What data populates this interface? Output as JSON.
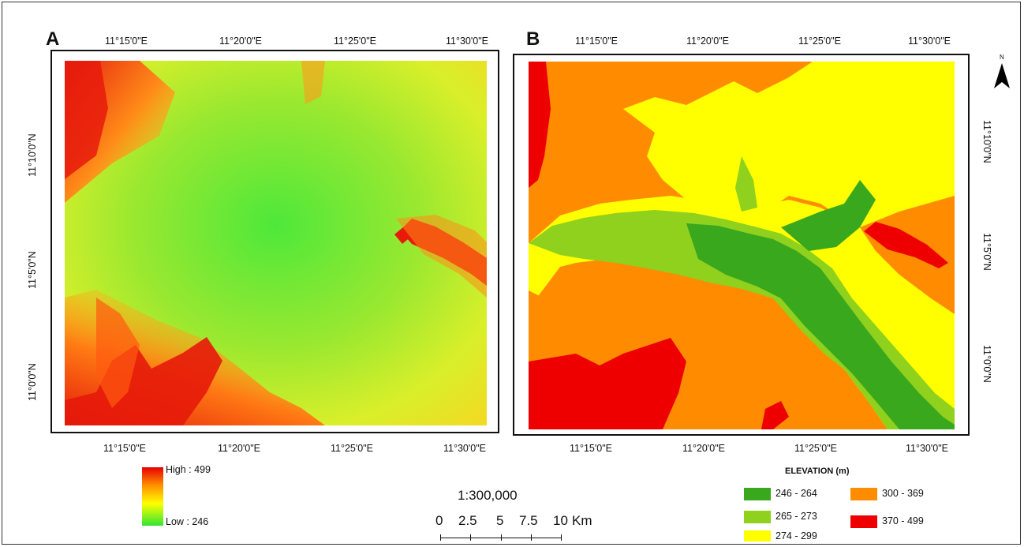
{
  "panels": [
    {
      "id": "A",
      "label": "A",
      "top_ticks": [
        "11°15'0\"E",
        "11°20'0\"E",
        "11°25'0\"E",
        "11°30'0\"E"
      ],
      "bottom_ticks": [
        "11°15'0\"E",
        "11°20'0\"E",
        "11°25'0\"E",
        "11°30'0\"E"
      ],
      "left_ticks": [
        "11°10'0\"N",
        "11°5'0\"N",
        "11°0'0\"N"
      ]
    },
    {
      "id": "B",
      "label": "B",
      "top_ticks": [
        "11°15'0\"E",
        "11°20'0\"E",
        "11°25'0\"E",
        "11°30'0\"E"
      ],
      "bottom_ticks": [
        "11°15'0\"E",
        "11°20'0\"E",
        "11°25'0\"E",
        "11°30'0\"E"
      ],
      "right_ticks": [
        "11°10'0\"N",
        "11°5'0\"N",
        "11°0'0\"N"
      ]
    }
  ],
  "north_arrow": {
    "label": "N",
    "icon": "north-arrow-icon"
  },
  "gradient_legend": {
    "high_label": "High : 499",
    "low_label": "Low : 246",
    "colors": [
      "#e60000",
      "#ff8c00",
      "#ffff00",
      "#32e632"
    ]
  },
  "scale": {
    "ratio": "1:300,000",
    "ticks": [
      "0",
      "2.5",
      "5",
      "7.5",
      "10"
    ],
    "unit": "Km"
  },
  "elevation_legend": {
    "title": "ELEVATION (m)",
    "classes": [
      {
        "label": "246 - 264",
        "color": "#3aa81c"
      },
      {
        "label": "265 - 273",
        "color": "#8fd11c"
      },
      {
        "label": "274 - 299",
        "color": "#ffff00"
      },
      {
        "label": "300 - 369",
        "color": "#ff8c00"
      },
      {
        "label": "370 - 499",
        "color": "#ee0000"
      }
    ]
  }
}
